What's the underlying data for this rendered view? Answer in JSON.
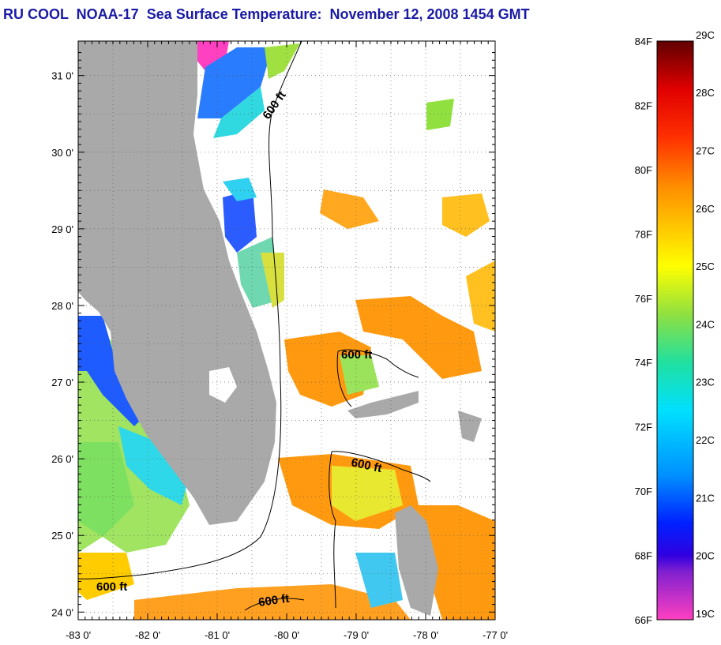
{
  "title": "RU COOL  NOAA-17  Sea Surface Temperature:  November 12, 2008 1454 GMT",
  "colors": {
    "title": "#1a1aa6",
    "land": "#a9a9a9",
    "frame": "#000000",
    "gridline": "#555555"
  },
  "axes": {
    "x_ticks": [
      "-83 0'",
      "-82 0'",
      "-81 0'",
      "-80 0'",
      "-79 0'",
      "-78 0'",
      "-77 0'"
    ],
    "y_ticks": [
      "31 0'",
      "30 0'",
      "29 0'",
      "28 0'",
      "27 0'",
      "26 0'",
      "25 0'",
      "24 0'"
    ],
    "lon_range": [
      -83,
      -77
    ],
    "lat_range": [
      23.9,
      31.45
    ],
    "grid": "dotted"
  },
  "contours": {
    "label": "600 ft"
  },
  "colorbar": {
    "left_labels_f": [
      "84F",
      "82F",
      "80F",
      "78F",
      "76F",
      "74F",
      "72F",
      "70F",
      "68F",
      "66F"
    ],
    "right_labels_c": [
      "29C",
      "28C",
      "27C",
      "26C",
      "25C",
      "24C",
      "23C",
      "22C",
      "21C",
      "20C",
      "19C"
    ],
    "range_f": [
      66,
      84
    ],
    "stops": [
      {
        "f": 84,
        "color": "#600000"
      },
      {
        "f": 82.5,
        "color": "#e00000"
      },
      {
        "f": 81,
        "color": "#ff3000"
      },
      {
        "f": 79.5,
        "color": "#ff8c00"
      },
      {
        "f": 78,
        "color": "#ffd000"
      },
      {
        "f": 77,
        "color": "#ffff00"
      },
      {
        "f": 75.5,
        "color": "#90e040"
      },
      {
        "f": 74,
        "color": "#20e0a0"
      },
      {
        "f": 72.5,
        "color": "#00e0ff"
      },
      {
        "f": 70.5,
        "color": "#0090ff"
      },
      {
        "f": 69,
        "color": "#0020ff"
      },
      {
        "f": 68,
        "color": "#3000e0"
      },
      {
        "f": 67.5,
        "color": "#8020d0"
      },
      {
        "f": 66,
        "color": "#ff40c0"
      }
    ]
  }
}
